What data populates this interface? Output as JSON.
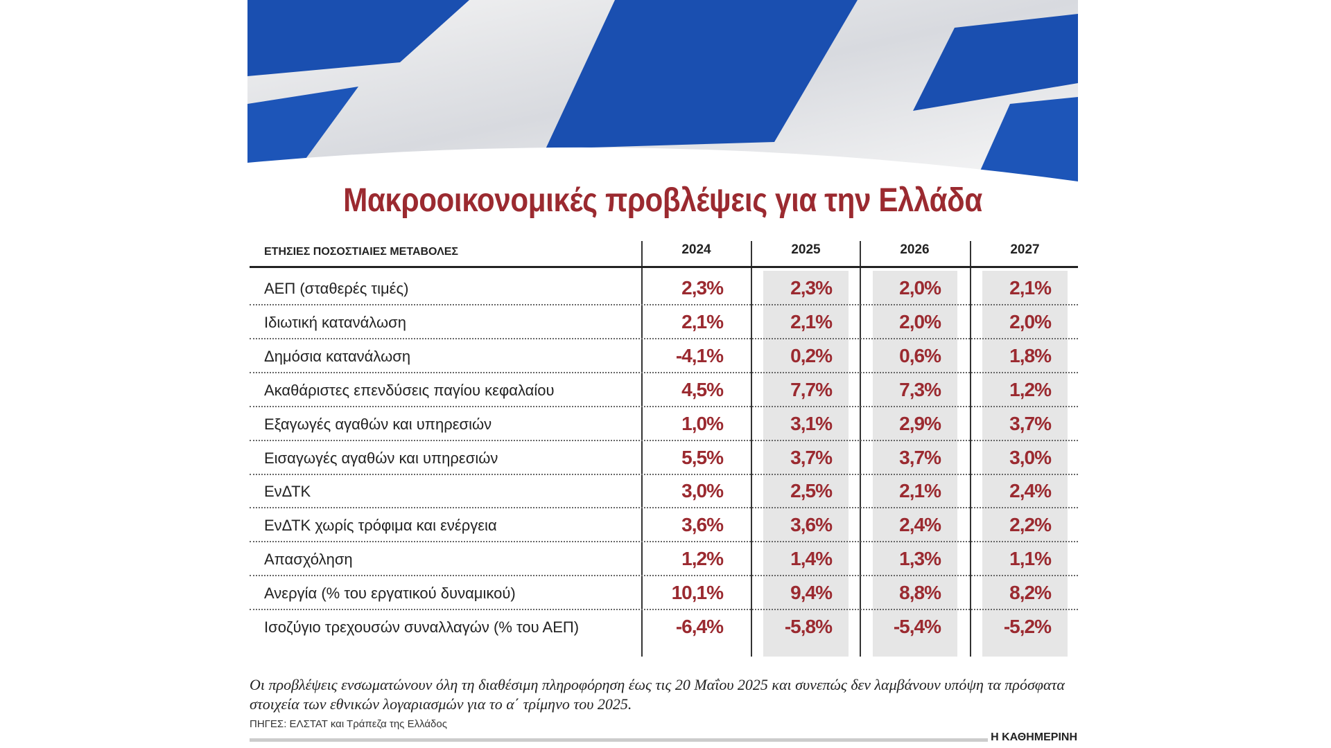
{
  "title": "Μακροοικονομικές προβλέψεις για την Ελλάδα",
  "header": {
    "label": "ΕΤΗΣΙΕΣ ΠΟΣΟΣΤΙΑΙΕΣ ΜΕΤΑΒΟΛΕΣ",
    "years": [
      "2024",
      "2025",
      "2026",
      "2027"
    ]
  },
  "rows": [
    {
      "label": "ΑΕΠ (σταθερές τιμές)",
      "values": [
        "2,3%",
        "2,3%",
        "2,0%",
        "2,1%"
      ]
    },
    {
      "label": "Ιδιωτική κατανάλωση",
      "values": [
        "2,1%",
        "2,1%",
        "2,0%",
        "2,0%"
      ]
    },
    {
      "label": "Δημόσια κατανάλωση",
      "values": [
        "-4,1%",
        "0,2%",
        "0,6%",
        "1,8%"
      ]
    },
    {
      "label": "Ακαθάριστες επενδύσεις παγίου κεφαλαίου",
      "values": [
        "4,5%",
        "7,7%",
        "7,3%",
        "1,2%"
      ]
    },
    {
      "label": "Εξαγωγές αγαθών και υπηρεσιών",
      "values": [
        "1,0%",
        "3,1%",
        "2,9%",
        "3,7%"
      ]
    },
    {
      "label": "Εισαγωγές αγαθών και υπηρεσιών",
      "values": [
        "5,5%",
        "3,7%",
        "3,7%",
        "3,0%"
      ]
    },
    {
      "label": "ΕνΔΤΚ",
      "values": [
        "3,0%",
        "2,5%",
        "2,1%",
        "2,4%"
      ]
    },
    {
      "label": "ΕνΔΤΚ χωρίς τρόφιμα και ενέργεια",
      "values": [
        "3,6%",
        "3,6%",
        "2,4%",
        "2,2%"
      ]
    },
    {
      "label": "Απασχόληση",
      "values": [
        "1,2%",
        "1,4%",
        "1,3%",
        "1,1%"
      ]
    },
    {
      "label": "Ανεργία (% του εργατικού δυναμικού)",
      "values": [
        "10,1%",
        "9,4%",
        "8,8%",
        "8,2%"
      ]
    },
    {
      "label": "Ισοζύγιο τρεχουσών συναλλαγών (% του ΑΕΠ)",
      "values": [
        "-6,4%",
        "-5,8%",
        "-5,4%",
        "-5,2%"
      ]
    }
  ],
  "note": "Οι προβλέψεις ενσωματώνουν όλη τη διαθέσιμη πληροφόρηση έως τις 20 Μαΐου 2025 και συνεπώς δεν λαμβάνουν υπόψη τα πρόσφατα στοιχεία των εθνικών λογαριασμών για το α΄ τρίμηνο του 2025.",
  "source": "ΠΗΓΕΣ: ΕΛΣΤΑΤ και Τράπεζα της Ελλάδος",
  "brand": "Η ΚΑΘΗΜΕΡΙΝΗ",
  "colors": {
    "accent": "#9b2a30",
    "flag_blue": "#1a4fb0"
  }
}
